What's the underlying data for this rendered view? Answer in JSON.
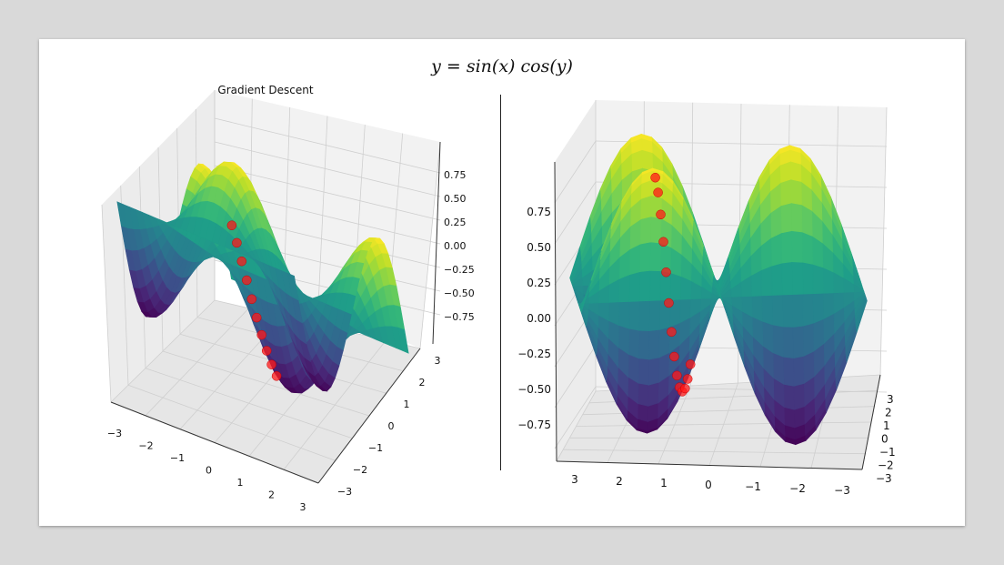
{
  "title": "y = sin(x) cos(y)",
  "chart_data": [
    {
      "type": "surface",
      "title": "Gradient Descent",
      "function": "sin(x) cos(y)",
      "x_ticks": [
        "−3",
        "−2",
        "−1",
        "0",
        "1",
        "2",
        "3"
      ],
      "y_ticks": [
        "−3",
        "−2",
        "−1",
        "0",
        "1",
        "2",
        "3"
      ],
      "z_ticks": [
        "0.75",
        "0.50",
        "0.25",
        "0.00",
        "−0.25",
        "−0.50",
        "−0.75"
      ],
      "colormap": "viridis",
      "series": [
        {
          "path_points_color": "#ff1a1a"
        }
      ]
    },
    {
      "type": "surface",
      "title": "",
      "function": "sin(x) cos(y)",
      "x_ticks": [
        "3",
        "2",
        "1",
        "0",
        "−1",
        "−2",
        "−3"
      ],
      "y_ticks": [
        "3",
        "2",
        "1",
        "0",
        "−1",
        "−2",
        "−3"
      ],
      "z_ticks": [
        "0.75",
        "0.50",
        "0.25",
        "0.00",
        "−0.25",
        "−0.50",
        "−0.75"
      ],
      "colormap": "viridis",
      "series": [
        {
          "path_points_color": "#ff1a1a"
        }
      ]
    }
  ]
}
